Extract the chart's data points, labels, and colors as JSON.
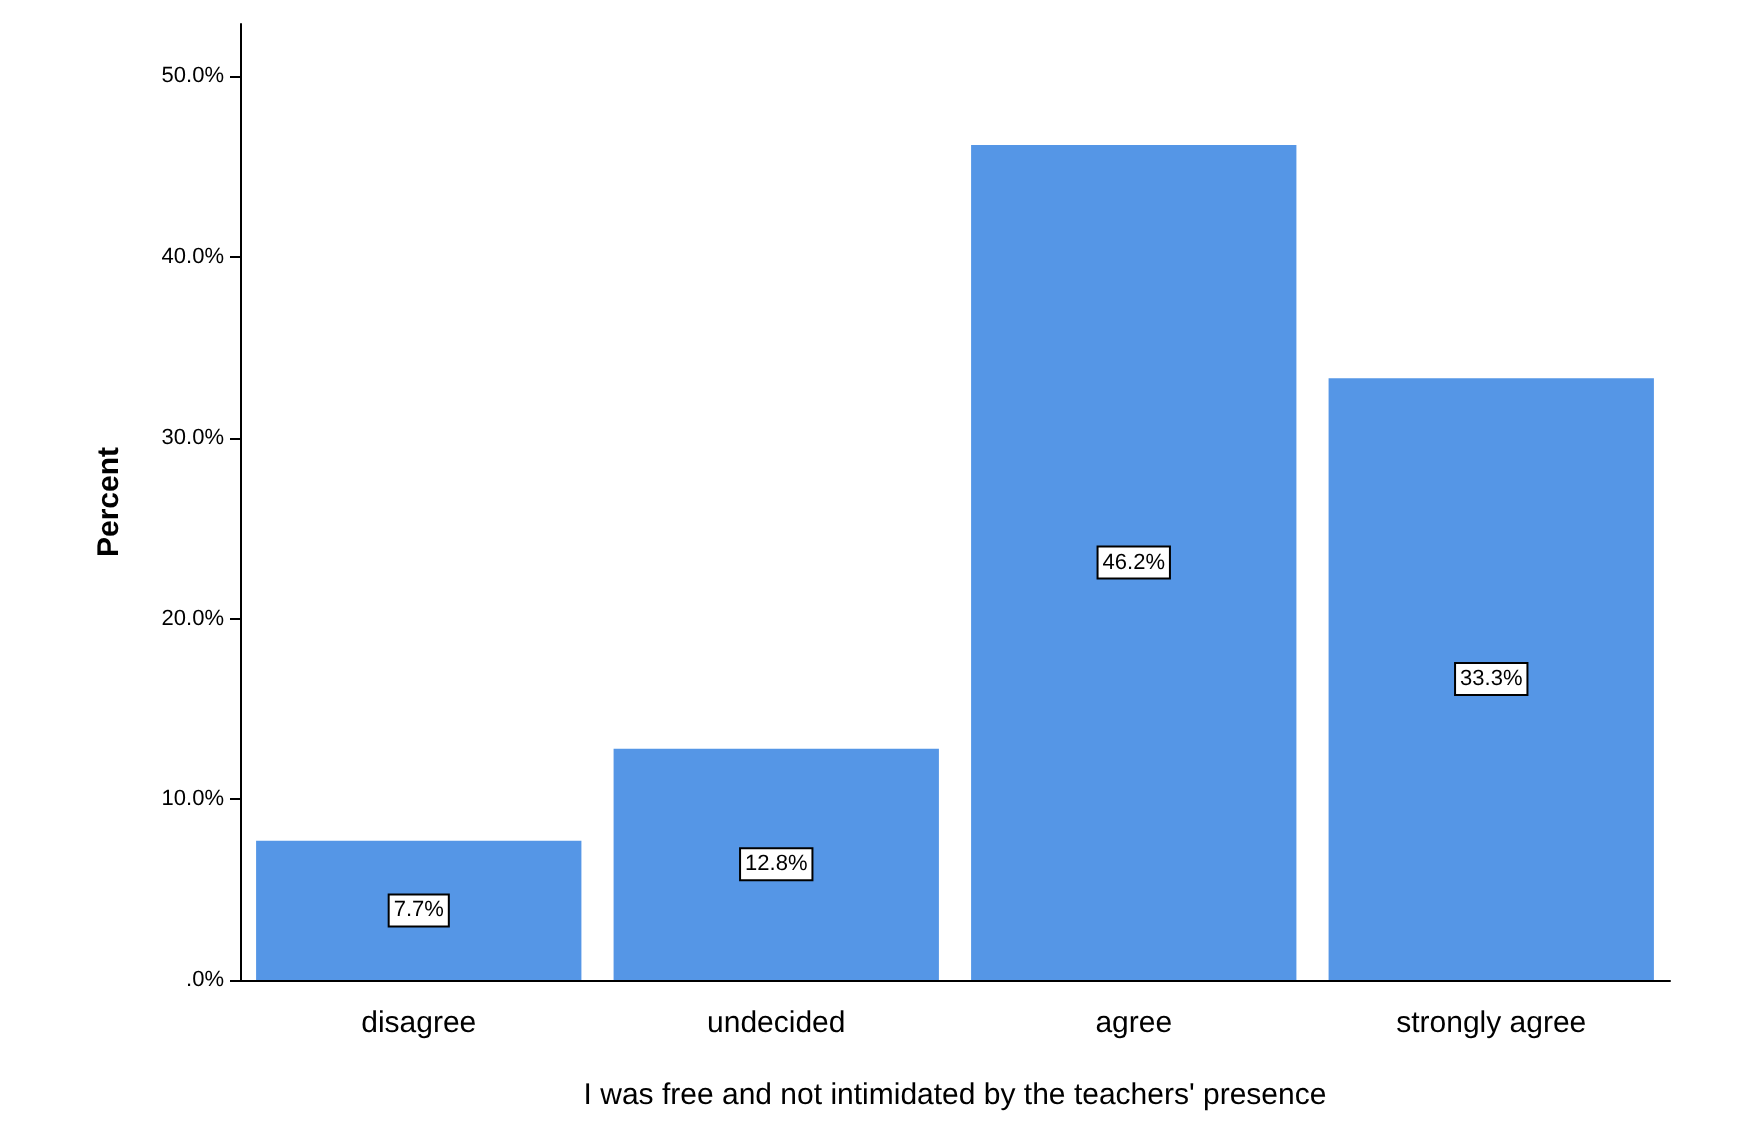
{
  "chart_data": {
    "type": "bar",
    "xlabel": "I was free and not intimidated by the teachers' presence",
    "ylabel": "Percent",
    "categories": [
      "disagree",
      "undecided",
      "agree",
      "strongly agree"
    ],
    "values": [
      7.7,
      12.8,
      46.2,
      33.3
    ],
    "value_labels": [
      "7.7%",
      "12.8%",
      "46.2%",
      "33.3%"
    ],
    "color": "#5596e6",
    "ylim": [
      0,
      52.9
    ],
    "yticks": [
      {
        "value": 0,
        "label": ".0%"
      },
      {
        "value": 10,
        "label": "10.0%"
      },
      {
        "value": 20,
        "label": "20.0%"
      },
      {
        "value": 30,
        "label": "30.0%"
      },
      {
        "value": 40,
        "label": "40.0%"
      },
      {
        "value": 50,
        "label": "50.0%"
      }
    ],
    "grid": false
  }
}
